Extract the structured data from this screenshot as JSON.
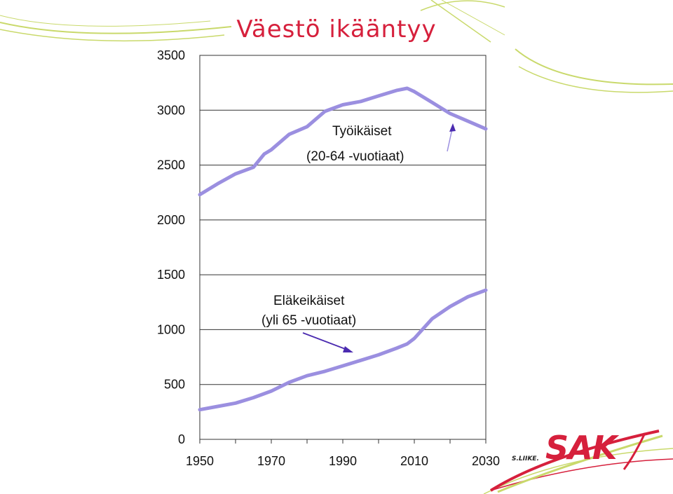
{
  "slide_title": "Väestö ikääntyy",
  "logo": {
    "brand": "SAK",
    "slogan_fragment": "S.LIIKE."
  },
  "colors": {
    "title": "#d6203c",
    "series": "#9b8fe0",
    "arrow": "#4b2bb0",
    "decor": "#c9d96b",
    "logo": "#d6203c"
  },
  "chart_data": {
    "type": "line",
    "xlim": [
      1950,
      2030
    ],
    "ylim": [
      0,
      3500
    ],
    "x_ticks": [
      1950,
      1970,
      1990,
      2010,
      2030
    ],
    "y_ticks": [
      0,
      500,
      1000,
      1500,
      2000,
      2500,
      3000,
      3500
    ],
    "grid": "horizontal",
    "series": [
      {
        "name": "Työikäiset",
        "x": [
          1950,
          1955,
          1960,
          1965,
          1968,
          1970,
          1975,
          1980,
          1985,
          1990,
          1995,
          2000,
          2005,
          2008,
          2010,
          2015,
          2020,
          2025,
          2030
        ],
        "values": [
          2230,
          2330,
          2420,
          2480,
          2600,
          2640,
          2780,
          2850,
          2990,
          3050,
          3080,
          3130,
          3180,
          3200,
          3170,
          3070,
          2970,
          2900,
          2830
        ]
      },
      {
        "name": "Eläkeikäiset",
        "x": [
          1950,
          1955,
          1960,
          1965,
          1970,
          1975,
          1980,
          1985,
          1990,
          1995,
          2000,
          2005,
          2008,
          2010,
          2015,
          2020,
          2025,
          2030
        ],
        "values": [
          270,
          300,
          330,
          380,
          440,
          520,
          580,
          620,
          670,
          720,
          770,
          830,
          870,
          920,
          1100,
          1210,
          1300,
          1360
        ]
      }
    ],
    "annotations": [
      {
        "id": "working",
        "lines": [
          "Työikäiset",
          "(20-64 -vuotiaat)"
        ]
      },
      {
        "id": "retired",
        "lines": [
          "Eläkeikäiset",
          "(yli 65 -vuotiaat)"
        ]
      }
    ]
  }
}
